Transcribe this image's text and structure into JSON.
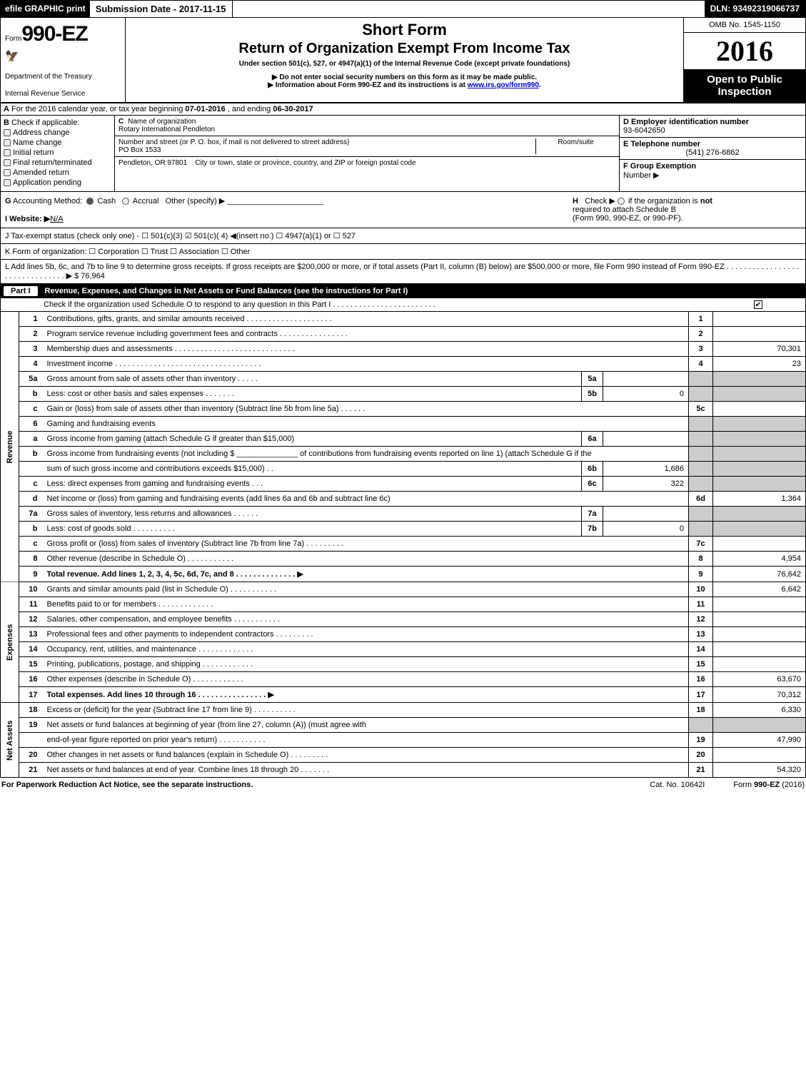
{
  "top": {
    "efile": "efile GRAPHIC print",
    "submission_label": "Submission Date - 2017-11-15",
    "dln": "DLN: 93492319066737"
  },
  "header": {
    "form_prefix": "Form",
    "form_number": "990-EZ",
    "dept1": "Department of the Treasury",
    "dept2": "Internal Revenue Service",
    "title1": "Short Form",
    "title2": "Return of Organization Exempt From Income Tax",
    "subtitle": "Under section 501(c), 527, or 4947(a)(1) of the Internal Revenue Code (except private foundations)",
    "note1": "▶ Do not enter social security numbers on this form as it may be made public.",
    "note2_pre": "▶ Information about Form 990-EZ and its instructions is at ",
    "note2_link": "www.irs.gov/form990",
    "note2_post": ".",
    "omb": "OMB No. 1545-1150",
    "year": "2016",
    "open_public1": "Open to Public",
    "open_public2": "Inspection"
  },
  "section_a": {
    "label_a": "A",
    "text_pre": "For the 2016 calendar year, or tax year beginning ",
    "begin": "07-01-2016",
    "text_mid": " , and ending ",
    "end": "06-30-2017"
  },
  "col_b": {
    "label": "B",
    "title": "Check if applicable:",
    "opts": [
      "Address change",
      "Name change",
      "Initial return",
      "Final return/terminated",
      "Amended return",
      "Application pending"
    ]
  },
  "col_c": {
    "c_label": "C",
    "c_name_lbl": "Name of organization",
    "c_name": "Rotary International Pendleton",
    "addr_lbl": "Number and street (or P. O. box, if mail is not delivered to street address)",
    "addr": "PO Box 1533",
    "room_lbl": "Room/suite",
    "city_lbl": "City or town, state or province, country, and ZIP or foreign postal code",
    "city": "Pendleton, OR  97801"
  },
  "col_d": {
    "d_lbl": "D Employer identification number",
    "d_val": "93-6042650",
    "e_lbl": "E Telephone number",
    "e_val": "(541) 276-6862",
    "f_lbl1": "F Group Exemption",
    "f_lbl2": "Number   ▶"
  },
  "gh": {
    "g_label": "G",
    "g_text": "Accounting Method:",
    "g_cash": "Cash",
    "g_accrual": "Accrual",
    "g_other": "Other (specify) ▶",
    "i_label": "I Website: ▶",
    "i_val": "N/A",
    "h_label": "H",
    "h_text1": "Check ▶",
    "h_text2": "if the organization is",
    "h_not": "not",
    "h_text3": "required to attach Schedule B",
    "h_text4": "(Form 990, 990-EZ, or 990-PF)."
  },
  "line_j": "J Tax-exempt status (check only one) - ☐ 501(c)(3)  ☑ 501(c)( 4) ◀(insert no.)  ☐ 4947(a)(1) or  ☐ 527",
  "line_k": "K Form of organization:   ☐ Corporation   ☐ Trust   ☐ Association   ☐ Other ",
  "line_l_pre": "L Add lines 5b, 6c, and 7b to line 9 to determine gross receipts. If gross receipts are $200,000 or more, or if total assets (Part II, column (B) below) are $500,000 or more, file Form 990 instead of Form 990-EZ  .  .  .  .  .  .  .  .  .  .  .  .  .  .  .  .  .  .  .  .  .  .  .  .  .  .  .  .  .  .  .  ▶ ",
  "line_l_val": "$ 76,964",
  "part1": {
    "label": "Part I",
    "title": "Revenue, Expenses, and Changes in Net Assets or Fund Balances (see the instructions for Part I)",
    "sub": "Check if the organization used Schedule O to respond to any question in this Part I .  .  .  .  .  .  .  .  .  .  .  .  .  .  .  .  .  .  .  .  .  .  .  .",
    "sub_checked": "✔"
  },
  "sidelabels": {
    "rev": "Revenue",
    "exp": "Expenses",
    "net": "Net Assets"
  },
  "rows": [
    {
      "n": "1",
      "desc": "Contributions, gifts, grants, and similar amounts received  .  .  .  .  .  .  .  .  .  .  .  .  .  .  .  .  .  .  .  .",
      "box": "1",
      "val": ""
    },
    {
      "n": "2",
      "desc": "Program service revenue including government fees and contracts  .  .  .  .  .  .  .  .  .  .  .  .  .  .  .  .",
      "box": "2",
      "val": ""
    },
    {
      "n": "3",
      "desc": "Membership dues and assessments  .  .  .  .  .  .  .  .  .  .  .  .  .  .  .  .  .  .  .  .  .  .  .  .  .  .  .  .",
      "box": "3",
      "val": "70,301"
    },
    {
      "n": "4",
      "desc": "Investment income  .  .  .  .  .  .  .  .  .  .  .  .  .  .  .  .  .  .  .  .  .  .  .  .  .  .  .  .  .  .  .  .  .  .",
      "box": "4",
      "val": "23"
    },
    {
      "n": "5a",
      "desc": "Gross amount from sale of assets other than inventory  .  .  .  .  .",
      "in": "5a",
      "iv": "",
      "shade": true
    },
    {
      "n": "b",
      "desc": "Less: cost or other basis and sales expenses  .  .  .  .  .  .  .",
      "in": "5b",
      "iv": "0",
      "shade": true
    },
    {
      "n": "c",
      "desc": "Gain or (loss) from sale of assets other than inventory (Subtract line 5b from line 5a)          .   .   .   .   .   .",
      "box": "5c",
      "val": ""
    },
    {
      "n": "6",
      "desc": "Gaming and fundraising events",
      "shade": true,
      "noinner": true
    },
    {
      "n": "a",
      "desc": "Gross income from gaming (attach Schedule G if greater than $15,000)",
      "in": "6a",
      "iv": "",
      "shade": true
    },
    {
      "n": "b",
      "desc": "Gross income from fundraising events (not including $ ______________ of contributions from fundraising events reported on line 1) (attach Schedule G if the",
      "shade": true,
      "noinner": true
    },
    {
      "n": "",
      "desc": "sum of such gross income and contributions exceeds $15,000)          .   .",
      "in": "6b",
      "iv": "1,686",
      "shade": true
    },
    {
      "n": "c",
      "desc": "Less: direct expenses from gaming and fundraising events          .   .   .",
      "in": "6c",
      "iv": "322",
      "shade": true
    },
    {
      "n": "d",
      "desc": "Net income or (loss) from gaming and fundraising events (add lines 6a and 6b and subtract line 6c)",
      "box": "6d",
      "val": "1,364"
    },
    {
      "n": "7a",
      "desc": "Gross sales of inventory, less returns and allowances          .   .   .   .   .   .",
      "in": "7a",
      "iv": "",
      "shade": true
    },
    {
      "n": "b",
      "desc": "Less: cost of goods sold                    .   .   .   .   .   .   .   .   .   .",
      "in": "7b",
      "iv": "0",
      "shade": true
    },
    {
      "n": "c",
      "desc": "Gross profit or (loss) from sales of inventory (Subtract line 7b from line 7a)          .   .   .   .   .   .   .   .   .",
      "box": "7c",
      "val": ""
    },
    {
      "n": "8",
      "desc": "Other revenue (describe in Schedule O)          .   .   .   .   .   .   .   .   .   .   .",
      "box": "8",
      "val": "4,954"
    },
    {
      "n": "9",
      "desc": "Total revenue. Add lines 1, 2, 3, 4, 5c, 6d, 7c, and 8     .   .   .   .   .   .   .   .   .   .   .   .   .   .   ▶",
      "box": "9",
      "val": "76,642",
      "bold": true
    },
    {
      "n": "10",
      "desc": "Grants and similar amounts paid (list in Schedule O)          .   .   .   .   .   .   .   .   .   .   .",
      "box": "10",
      "val": "6,642",
      "sec": "exp"
    },
    {
      "n": "11",
      "desc": "Benefits paid to or for members          .   .   .   .   .   .   .   .   .   .   .   .   .",
      "box": "11",
      "val": "",
      "sec": "exp"
    },
    {
      "n": "12",
      "desc": "Salaries, other compensation, and employee benefits          .   .   .   .   .   .   .   .   .   .   .",
      "box": "12",
      "val": "",
      "sec": "exp"
    },
    {
      "n": "13",
      "desc": "Professional fees and other payments to independent contractors          .   .   .   .   .   .   .   .   .",
      "box": "13",
      "val": "",
      "sec": "exp"
    },
    {
      "n": "14",
      "desc": "Occupancy, rent, utilities, and maintenance          .   .   .   .   .   .   .   .   .   .   .   .   .",
      "box": "14",
      "val": "",
      "sec": "exp"
    },
    {
      "n": "15",
      "desc": "Printing, publications, postage, and shipping          .   .   .   .   .   .   .   .   .   .   .   .",
      "box": "15",
      "val": "",
      "sec": "exp"
    },
    {
      "n": "16",
      "desc": "Other expenses (describe in Schedule O)          .   .   .   .   .   .   .   .   .   .   .   .",
      "box": "16",
      "val": "63,670",
      "sec": "exp"
    },
    {
      "n": "17",
      "desc": "Total expenses. Add lines 10 through 16     .   .   .   .   .   .   .   .   .   .   .   .   .   .   .   .   ▶",
      "box": "17",
      "val": "70,312",
      "bold": true,
      "sec": "exp"
    },
    {
      "n": "18",
      "desc": "Excess or (deficit) for the year (Subtract line 17 from line 9)          .   .   .   .   .   .   .   .   .   .",
      "box": "18",
      "val": "6,330",
      "sec": "net"
    },
    {
      "n": "19",
      "desc": "Net assets or fund balances at beginning of year (from line 27, column (A)) (must agree with",
      "shade": true,
      "noinner": true,
      "sec": "net"
    },
    {
      "n": "",
      "desc": "end-of-year figure reported on prior year's return)          .   .   .   .   .   .   .   .   .   .   .",
      "box": "19",
      "val": "47,990",
      "sec": "net"
    },
    {
      "n": "20",
      "desc": "Other changes in net assets or fund balances (explain in Schedule O)          .   .   .   .   .   .   .   .   .",
      "box": "20",
      "val": "",
      "sec": "net"
    },
    {
      "n": "21",
      "desc": "Net assets or fund balances at end of year. Combine lines 18 through 20          .   .   .   .   .   .   .",
      "box": "21",
      "val": "54,320",
      "sec": "net"
    }
  ],
  "footer": {
    "left": "For Paperwork Reduction Act Notice, see the separate instructions.",
    "center": "Cat. No. 10642I",
    "right_pre": "Form ",
    "right_form": "990-EZ",
    "right_post": " (2016)"
  }
}
